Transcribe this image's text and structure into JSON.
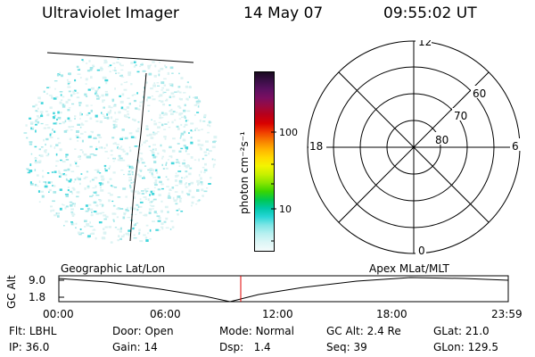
{
  "header": {
    "instrument": "Ultraviolet Imager",
    "date": "14 May 07",
    "time": "09:55:02 UT"
  },
  "colorbar": {
    "unit_label": "photon cm⁻²s⁻¹",
    "ticks": [
      "100",
      "10"
    ],
    "colors": [
      "#1a0a20",
      "#3a0f46",
      "#5a1060",
      "#7a0e60",
      "#9a0a40",
      "#b8001a",
      "#d80000",
      "#ef3a00",
      "#f77a00",
      "#ffb000",
      "#ffd800",
      "#f4f400",
      "#c8f000",
      "#8ae600",
      "#3ad400",
      "#00c850",
      "#00c8a8",
      "#28d6d6",
      "#80e6e6",
      "#b8f0f0",
      "#dcf6f6",
      "#f4fbfb"
    ]
  },
  "polar_plot": {
    "mlt_labels": {
      "top": "12",
      "bottom": "0",
      "left": "18",
      "right": "6"
    },
    "lat_labels": [
      "60",
      "70",
      "80"
    ]
  },
  "timeline": {
    "left_label": "Geographic Lat/Lon",
    "right_label": "Apex MLat/MLT",
    "axis_title": "GC Alt",
    "y_ticks": [
      "9.0",
      "1.8"
    ],
    "x_ticks": [
      "00:00",
      "06:00",
      "12:00",
      "18:00",
      "23:59"
    ],
    "marker_color": "#e00000",
    "curve_color": "#000000"
  },
  "info": {
    "row1": [
      {
        "label": "Flt:",
        "value": "LBHL"
      },
      {
        "label": "Door:",
        "value": "Open"
      },
      {
        "label": "Mode:",
        "value": "Normal"
      },
      {
        "label": "GC Alt:",
        "value": "2.4 Re"
      },
      {
        "label": "GLat:",
        "value": "21.0"
      }
    ],
    "row2": [
      {
        "label": "IP:",
        "value": "36.0"
      },
      {
        "label": "Gain:",
        "value": "14"
      },
      {
        "label": "Dsp:",
        "value": "1.4"
      },
      {
        "label": "Seq:",
        "value": "39"
      },
      {
        "label": "GLon:",
        "value": "129.5"
      }
    ]
  }
}
